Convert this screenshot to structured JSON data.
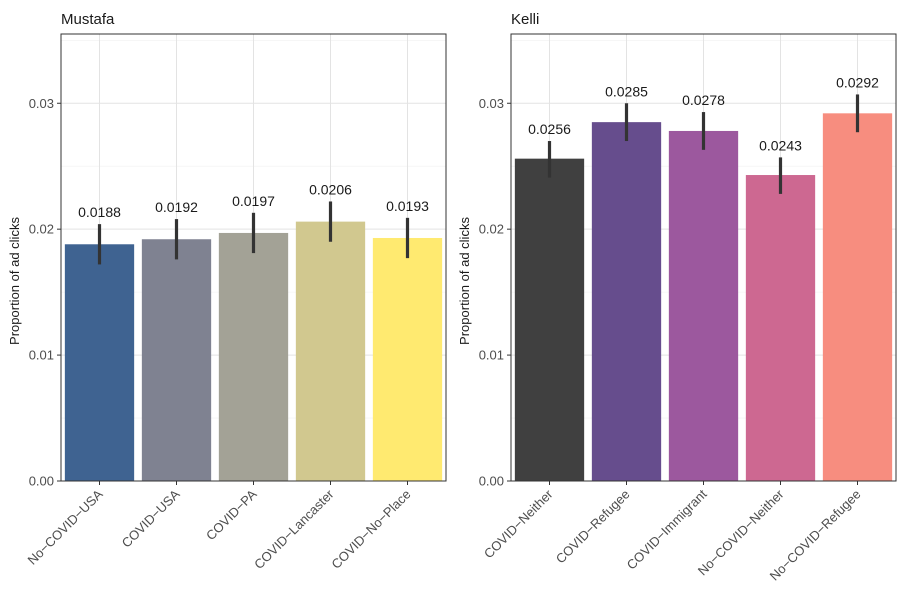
{
  "chart_data": [
    {
      "type": "bar",
      "title": "Mustafa",
      "ylabel": "Proportion of ad clicks",
      "xlabel": "",
      "ylim": [
        0,
        0.0355
      ],
      "yticks": [
        0.0,
        0.01,
        0.02,
        0.03
      ],
      "ytick_labels": [
        "0.00",
        "0.01",
        "0.02",
        "0.03"
      ],
      "grid": true,
      "categories": [
        "No−COVID−USA",
        "COVID−USA",
        "COVID−PA",
        "COVID−Lancaster",
        "COVID−No−Place"
      ],
      "values": [
        0.0188,
        0.0192,
        0.0197,
        0.0206,
        0.0193
      ],
      "value_labels": [
        "0.0188",
        "0.0192",
        "0.0197",
        "0.0206",
        "0.0193"
      ],
      "error_low": [
        0.0172,
        0.0176,
        0.0181,
        0.019,
        0.0177
      ],
      "error_high": [
        0.0204,
        0.0208,
        0.0213,
        0.0222,
        0.0209
      ],
      "colors": [
        "#3f6391",
        "#7f8291",
        "#a3a296",
        "#d1c88f",
        "#ffea70"
      ]
    },
    {
      "type": "bar",
      "title": "Kelli",
      "ylabel": "Proportion of ad clicks",
      "xlabel": "",
      "ylim": [
        0,
        0.0355
      ],
      "yticks": [
        0.0,
        0.01,
        0.02,
        0.03
      ],
      "ytick_labels": [
        "0.00",
        "0.01",
        "0.02",
        "0.03"
      ],
      "grid": true,
      "categories": [
        "COVID−Neither",
        "COVID−Refugee",
        "COVID−Immigrant",
        "No−COVID−Neither",
        "No−COVID−Refugee"
      ],
      "values": [
        0.0256,
        0.0285,
        0.0278,
        0.0243,
        0.0292
      ],
      "value_labels": [
        "0.0256",
        "0.0285",
        "0.0278",
        "0.0243",
        "0.0292"
      ],
      "error_low": [
        0.0241,
        0.027,
        0.0263,
        0.0228,
        0.0277
      ],
      "error_high": [
        0.027,
        0.03,
        0.0293,
        0.0257,
        0.0307
      ],
      "colors": [
        "#404040",
        "#664d8d",
        "#9c589e",
        "#cd6891",
        "#f78d7f"
      ]
    }
  ]
}
